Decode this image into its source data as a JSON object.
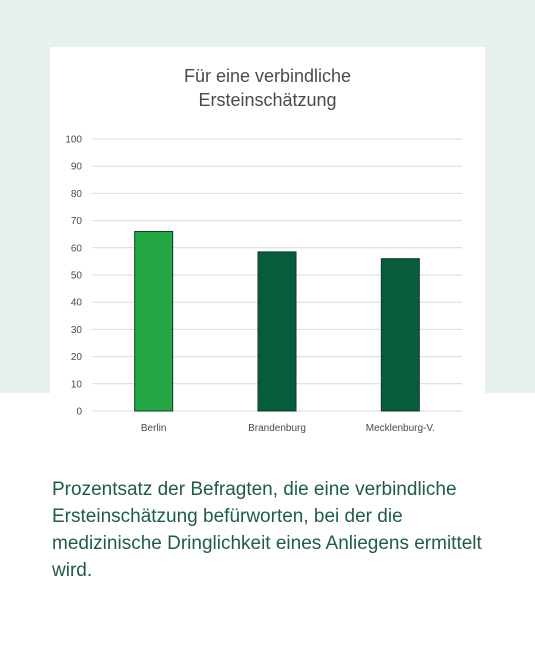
{
  "chart_data": {
    "type": "bar",
    "title": "Für eine verbindliche\nErsteinschätzung",
    "xlabel": "",
    "ylabel": "",
    "categories": [
      "Berlin",
      "Brandenburg",
      "Mecklenburg-V."
    ],
    "values": [
      66,
      58.5,
      56
    ],
    "ylim": [
      0,
      100
    ],
    "yticks": [
      "0",
      "10",
      "20",
      "30",
      "40",
      "50",
      "60",
      "70",
      "80",
      "90",
      "100"
    ],
    "grid": true,
    "bar_colors": [
      "#23a744",
      "#075c3c",
      "#075c3c"
    ]
  },
  "caption": "Prozentsatz der Befragten, die eine verbindliche Ersteinschätzung befürworten, bei der die medizinische Dringlichkeit eines Anliegens ermittelt wird.",
  "colors": {
    "background_band": "#e6f0ee",
    "caption_text": "#1f5c47"
  }
}
